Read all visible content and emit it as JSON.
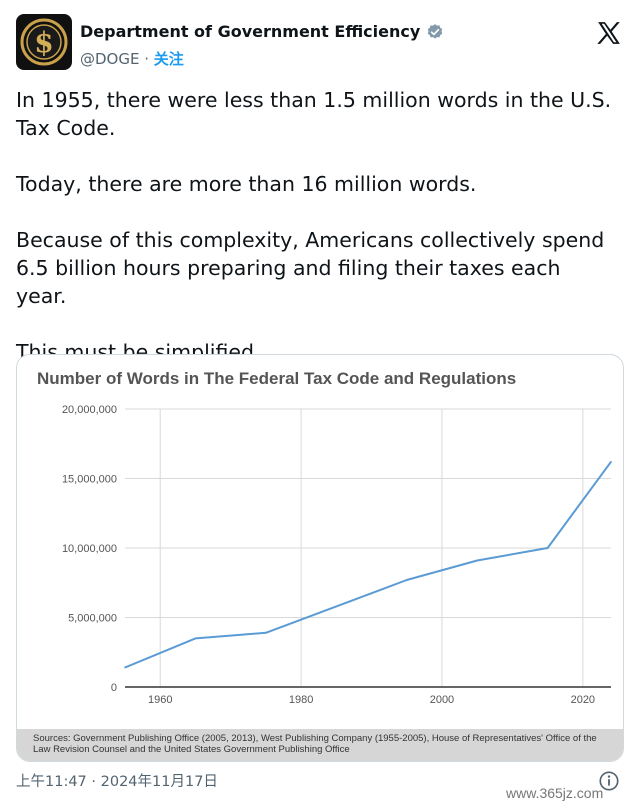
{
  "account": {
    "display_name": "Department of Government Efficiency",
    "handle": "@DOGE",
    "separator": " · ",
    "follow_label": "关注"
  },
  "icons": {
    "avatar": "dollar-seal-icon",
    "verified": "verified-badge-icon",
    "platform": "x-logo-icon",
    "info": "info-icon"
  },
  "colors": {
    "accent": "#1d9bf0",
    "line": "#5b9bd5",
    "avatar_gold": "#c9a14a"
  },
  "tweet": {
    "paragraphs": [
      "In 1955, there were less than 1.5 million words in the U.S. Tax Code.",
      "Today, there are more than 16 million words.",
      "Because of this complexity, Americans collectively spend 6.5 billion hours preparing and filing their taxes each year.",
      "This must be simplified."
    ],
    "timestamp": "上午11:47 · 2024年11月17日"
  },
  "chart_data": {
    "type": "line",
    "title": "Number of Words in The Federal Tax Code and Regulations",
    "xlim": [
      1955,
      2024
    ],
    "ylim": [
      0,
      20000000
    ],
    "x_ticks": [
      1960,
      1980,
      2000,
      2020
    ],
    "y_ticks": [
      0,
      5000000,
      10000000,
      15000000,
      20000000
    ],
    "y_tick_labels": [
      "0",
      "5,000,000",
      "10,000,000",
      "15,000,000",
      "20,000,000"
    ],
    "grid": true,
    "series": [
      {
        "x": [
          1955,
          1965,
          1975,
          1985,
          1995,
          2005,
          2015,
          2024
        ],
        "y": [
          1400000,
          3500000,
          3900000,
          5800000,
          7700000,
          9100000,
          10000000,
          16200000
        ]
      }
    ],
    "source": "Sources: Government Publishing Office (2005, 2013), West Publishing Company (1955-2005), House of Representatives' Office of the Law Revision Counsel and the United States Government Publishing Office"
  },
  "watermark": "www.365jz.com"
}
